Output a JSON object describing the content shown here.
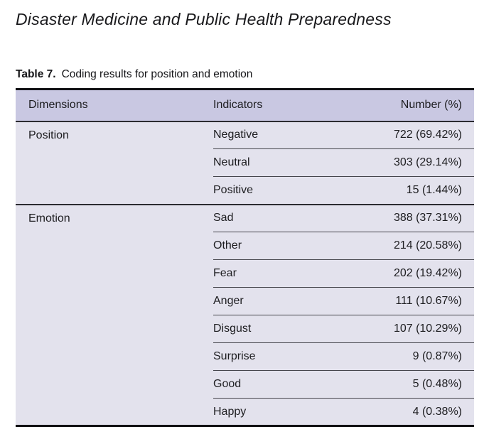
{
  "journal_title": "Disaster Medicine and Public Health Preparedness",
  "caption": {
    "label": "Table 7.",
    "text": "Coding results for position and emotion"
  },
  "table": {
    "columns": [
      "Dimensions",
      "Indicators",
      "Number (%)"
    ],
    "groups": [
      {
        "dimension": "Position",
        "rows": [
          {
            "indicator": "Negative",
            "number": "722 (69.42%)"
          },
          {
            "indicator": "Neutral",
            "number": "303 (29.14%)"
          },
          {
            "indicator": "Positive",
            "number": "15 (1.44%)"
          }
        ]
      },
      {
        "dimension": "Emotion",
        "rows": [
          {
            "indicator": "Sad",
            "number": "388 (37.31%)"
          },
          {
            "indicator": "Other",
            "number": "214 (20.58%)"
          },
          {
            "indicator": "Fear",
            "number": "202 (19.42%)"
          },
          {
            "indicator": "Anger",
            "number": "111 (10.67%)"
          },
          {
            "indicator": "Disgust",
            "number": "107 (10.29%)"
          },
          {
            "indicator": "Surprise",
            "number": "9 (0.87%)"
          },
          {
            "indicator": "Good",
            "number": "5 (0.48%)"
          },
          {
            "indicator": "Happy",
            "number": "4 (0.38%)"
          }
        ]
      }
    ]
  },
  "colors": {
    "header_bg": "#c9c8e2",
    "body_bg": "#e3e2ed",
    "rule_heavy": "#111114",
    "rule_dark": "#2b2b31",
    "rule_mid": "#45454c",
    "text": "#1d1d20"
  }
}
